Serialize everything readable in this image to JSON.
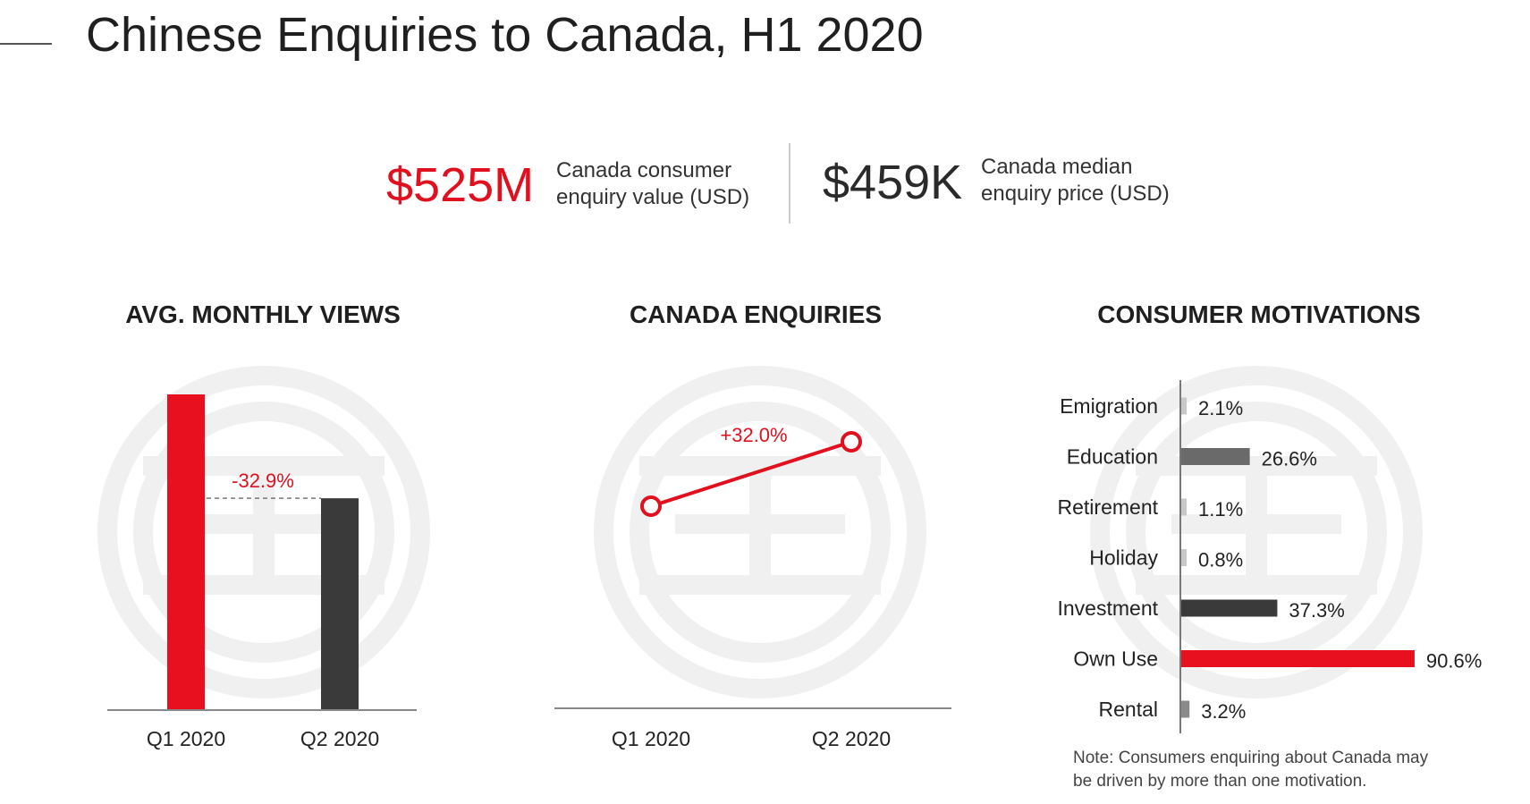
{
  "page": {
    "title": "Chinese Enquiries to Canada, H1 2020"
  },
  "kpis": [
    {
      "value": "$525M",
      "label": "Canada consumer enquiry value (USD)",
      "color": "#e0101e"
    },
    {
      "value": "$459K",
      "label": "Canada median enquiry price (USD)",
      "color": "#2a2a2a"
    }
  ],
  "note": "Note: Consumers enquiring about Canada may be driven by more than one motivation.",
  "chart_data": [
    {
      "type": "bar",
      "title": "AVG. MONTHLY VIEWS",
      "categories": [
        "Q1 2020",
        "Q2 2020"
      ],
      "values": [
        100,
        67.1
      ],
      "value_unit": "relative index (no axis printed; Q2 is -32.9% vs Q1)",
      "annotation": "-32.9%",
      "colors": [
        "#e8101e",
        "#3a3a3a"
      ],
      "grid": false
    },
    {
      "type": "line",
      "title": "CANADA ENQUIRIES",
      "categories": [
        "Q1 2020",
        "Q2 2020"
      ],
      "values": [
        100,
        132
      ],
      "value_unit": "relative index (no axis printed; Q2 is +32.0% vs Q1)",
      "annotation": "+32.0%",
      "color": "#e0101e",
      "grid": false
    },
    {
      "type": "bar",
      "orientation": "horizontal",
      "title": "CONSUMER MOTIVATIONS",
      "categories": [
        "Emigration",
        "Education",
        "Retirement",
        "Holiday",
        "Investment",
        "Own Use",
        "Rental"
      ],
      "values": [
        2.1,
        26.6,
        1.1,
        0.8,
        37.3,
        90.6,
        3.2
      ],
      "labels": [
        "2.1%",
        "26.6%",
        "1.1%",
        "0.8%",
        "37.3%",
        "90.6%",
        "3.2%"
      ],
      "xlim": [
        0,
        100
      ],
      "colors": [
        "#c8c8c8",
        "#6a6a6a",
        "#c8c8c8",
        "#c8c8c8",
        "#3a3a3a",
        "#e8101e",
        "#8a8a8a"
      ],
      "grid": false
    }
  ]
}
